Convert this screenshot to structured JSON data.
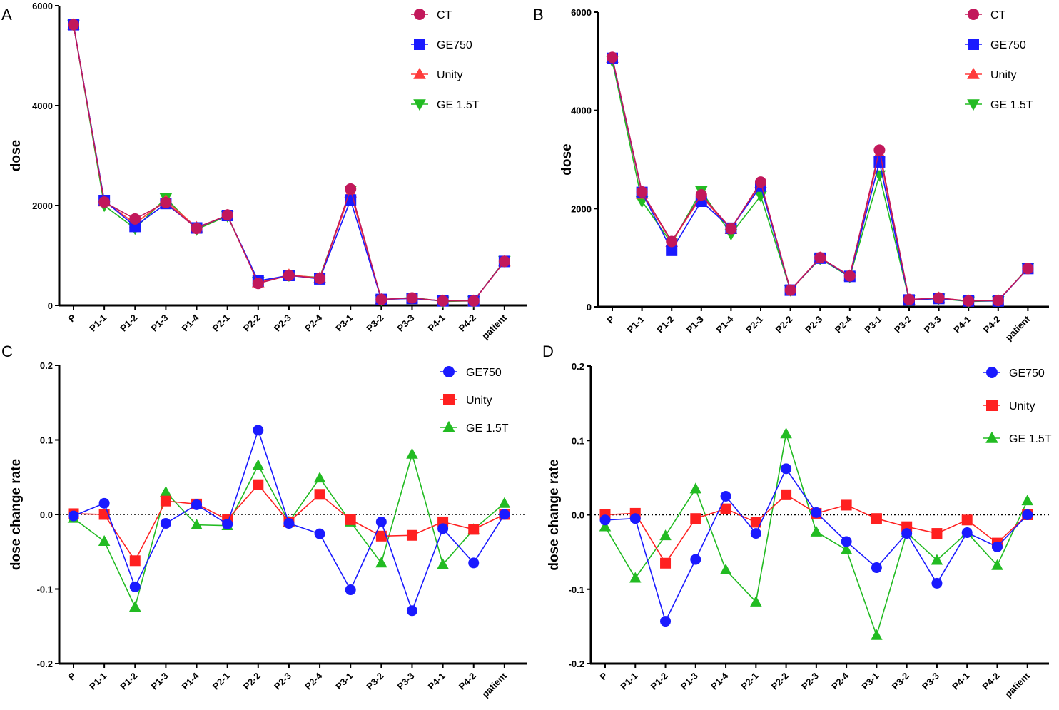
{
  "colors": {
    "CT": "#c2185b",
    "GE750_top": "#1a1aff",
    "Unity_top": "#ff3b3b",
    "GE15T_top": "#22bb22",
    "GE750_bottom": "#1a1aff",
    "Unity_bottom": "#ff2020",
    "GE15T_bottom": "#22bb22"
  },
  "chart_data": [
    {
      "panel": "A",
      "type": "line",
      "xlabel": "",
      "ylabel": "dose",
      "ylim": [
        0,
        6000
      ],
      "yticks": [
        "0",
        "2000",
        "4000",
        "6000"
      ],
      "categories": [
        "P",
        "P1-1",
        "P1-2",
        "P1-3",
        "P1-4",
        "P2-1",
        "P2-2",
        "P2-3",
        "P2-4",
        "P3-1",
        "P3-2",
        "P3-3",
        "P4-1",
        "P4-2",
        "patient"
      ],
      "legend_position": "top-right",
      "series": [
        {
          "name": "CT",
          "marker": "circle",
          "values": [
            5620,
            2070,
            1730,
            2060,
            1540,
            1810,
            440,
            600,
            540,
            2330,
            120,
            150,
            90,
            90,
            880
          ]
        },
        {
          "name": "GE750",
          "marker": "square",
          "values": [
            5620,
            2100,
            1580,
            2040,
            1550,
            1800,
            490,
            600,
            530,
            2110,
            120,
            140,
            90,
            90,
            880
          ]
        },
        {
          "name": "Unity",
          "marker": "triangle-up",
          "values": [
            5620,
            2080,
            1640,
            2100,
            1560,
            1800,
            460,
            610,
            550,
            2260,
            120,
            140,
            90,
            90,
            880
          ]
        },
        {
          "name": "GE 1.5T",
          "marker": "triangle-down",
          "values": [
            5620,
            2000,
            1540,
            2150,
            1520,
            1790,
            470,
            600,
            560,
            2300,
            110,
            160,
            80,
            90,
            890
          ]
        }
      ]
    },
    {
      "panel": "B",
      "type": "line",
      "xlabel": "",
      "ylabel": "dose",
      "ylim": [
        0,
        6000
      ],
      "yticks": [
        "0",
        "2000",
        "4000",
        "6000"
      ],
      "categories": [
        "P",
        "P1-1",
        "P1-2",
        "P1-3",
        "P1-4",
        "P2-1",
        "P2-2",
        "P2-3",
        "P2-4",
        "P3-1",
        "P3-2",
        "P3-3",
        "P4-1",
        "P4-2",
        "patient"
      ],
      "legend_position": "top-right",
      "series": [
        {
          "name": "CT",
          "marker": "circle",
          "values": [
            5080,
            2340,
            1330,
            2280,
            1590,
            2540,
            340,
            1000,
            630,
            3190,
            150,
            180,
            120,
            130,
            780
          ]
        },
        {
          "name": "GE750",
          "marker": "square",
          "values": [
            5060,
            2330,
            1150,
            2150,
            1600,
            2460,
            340,
            990,
            620,
            2950,
            140,
            170,
            120,
            120,
            780
          ]
        },
        {
          "name": "Unity",
          "marker": "triangle-up",
          "values": [
            5070,
            2300,
            1320,
            2250,
            1580,
            2520,
            330,
            1000,
            630,
            3120,
            140,
            180,
            120,
            130,
            780
          ]
        },
        {
          "name": "GE 1.5T",
          "marker": "triangle-down",
          "values": [
            5010,
            2150,
            1290,
            2360,
            1480,
            2260,
            340,
            980,
            610,
            2680,
            140,
            170,
            110,
            120,
            790
          ]
        }
      ]
    },
    {
      "panel": "C",
      "type": "line",
      "xlabel": "",
      "ylabel": "dose change rate",
      "ylim": [
        -0.2,
        0.2
      ],
      "yticks": [
        "-0.2",
        "-0.1",
        "0.0",
        "0.1",
        "0.2"
      ],
      "reference_line": 0,
      "categories": [
        "P",
        "P1-1",
        "P1-2",
        "P1-3",
        "P1-4",
        "P2-1",
        "P2-2",
        "P2-3",
        "P2-4",
        "P3-1",
        "P3-2",
        "P3-3",
        "P4-1",
        "P4-2",
        "patient"
      ],
      "legend_position": "top-right",
      "series": [
        {
          "name": "GE750",
          "marker": "circle",
          "values": [
            -0.002,
            0.015,
            -0.097,
            -0.012,
            0.013,
            -0.013,
            0.113,
            -0.012,
            -0.026,
            -0.101,
            -0.01,
            -0.129,
            -0.019,
            -0.065,
            0.0
          ]
        },
        {
          "name": "Unity",
          "marker": "square",
          "values": [
            0.001,
            0.0,
            -0.062,
            0.018,
            0.014,
            -0.007,
            0.04,
            -0.01,
            0.027,
            -0.007,
            -0.029,
            -0.028,
            -0.01,
            -0.02,
            0.0
          ]
        },
        {
          "name": "GE 1.5T",
          "marker": "triangle-up",
          "values": [
            -0.005,
            -0.036,
            -0.124,
            0.03,
            -0.014,
            -0.015,
            0.066,
            -0.01,
            0.049,
            -0.01,
            -0.065,
            0.081,
            -0.067,
            -0.02,
            0.015
          ]
        }
      ]
    },
    {
      "panel": "D",
      "type": "line",
      "xlabel": "",
      "ylabel": "dose change rate",
      "ylim": [
        -0.2,
        0.2
      ],
      "yticks": [
        "-0.2",
        "-0.1",
        "0.0",
        "0.1",
        "0.2"
      ],
      "reference_line": 0,
      "categories": [
        "P",
        "P1-1",
        "P1-2",
        "P1-3",
        "P1-4",
        "P2-1",
        "P2-2",
        "P2-3",
        "P2-4",
        "P3-1",
        "P3-2",
        "P3-3",
        "P4-1",
        "P4-2",
        "patient"
      ],
      "legend_position": "top-right",
      "series": [
        {
          "name": "GE750",
          "marker": "circle",
          "values": [
            -0.007,
            -0.005,
            -0.143,
            -0.06,
            0.025,
            -0.025,
            0.062,
            0.003,
            -0.036,
            -0.071,
            -0.025,
            -0.092,
            -0.024,
            -0.043,
            0.0
          ]
        },
        {
          "name": "Unity",
          "marker": "square",
          "values": [
            0.0,
            0.002,
            -0.065,
            -0.005,
            0.008,
            -0.01,
            0.027,
            0.002,
            0.013,
            -0.005,
            -0.016,
            -0.025,
            -0.007,
            -0.038,
            0.0
          ]
        },
        {
          "name": "GE 1.5T",
          "marker": "triangle-up",
          "values": [
            -0.016,
            -0.085,
            -0.028,
            0.035,
            -0.074,
            -0.117,
            0.109,
            -0.023,
            -0.047,
            -0.162,
            -0.024,
            -0.061,
            -0.024,
            -0.068,
            0.019
          ]
        }
      ]
    }
  ]
}
